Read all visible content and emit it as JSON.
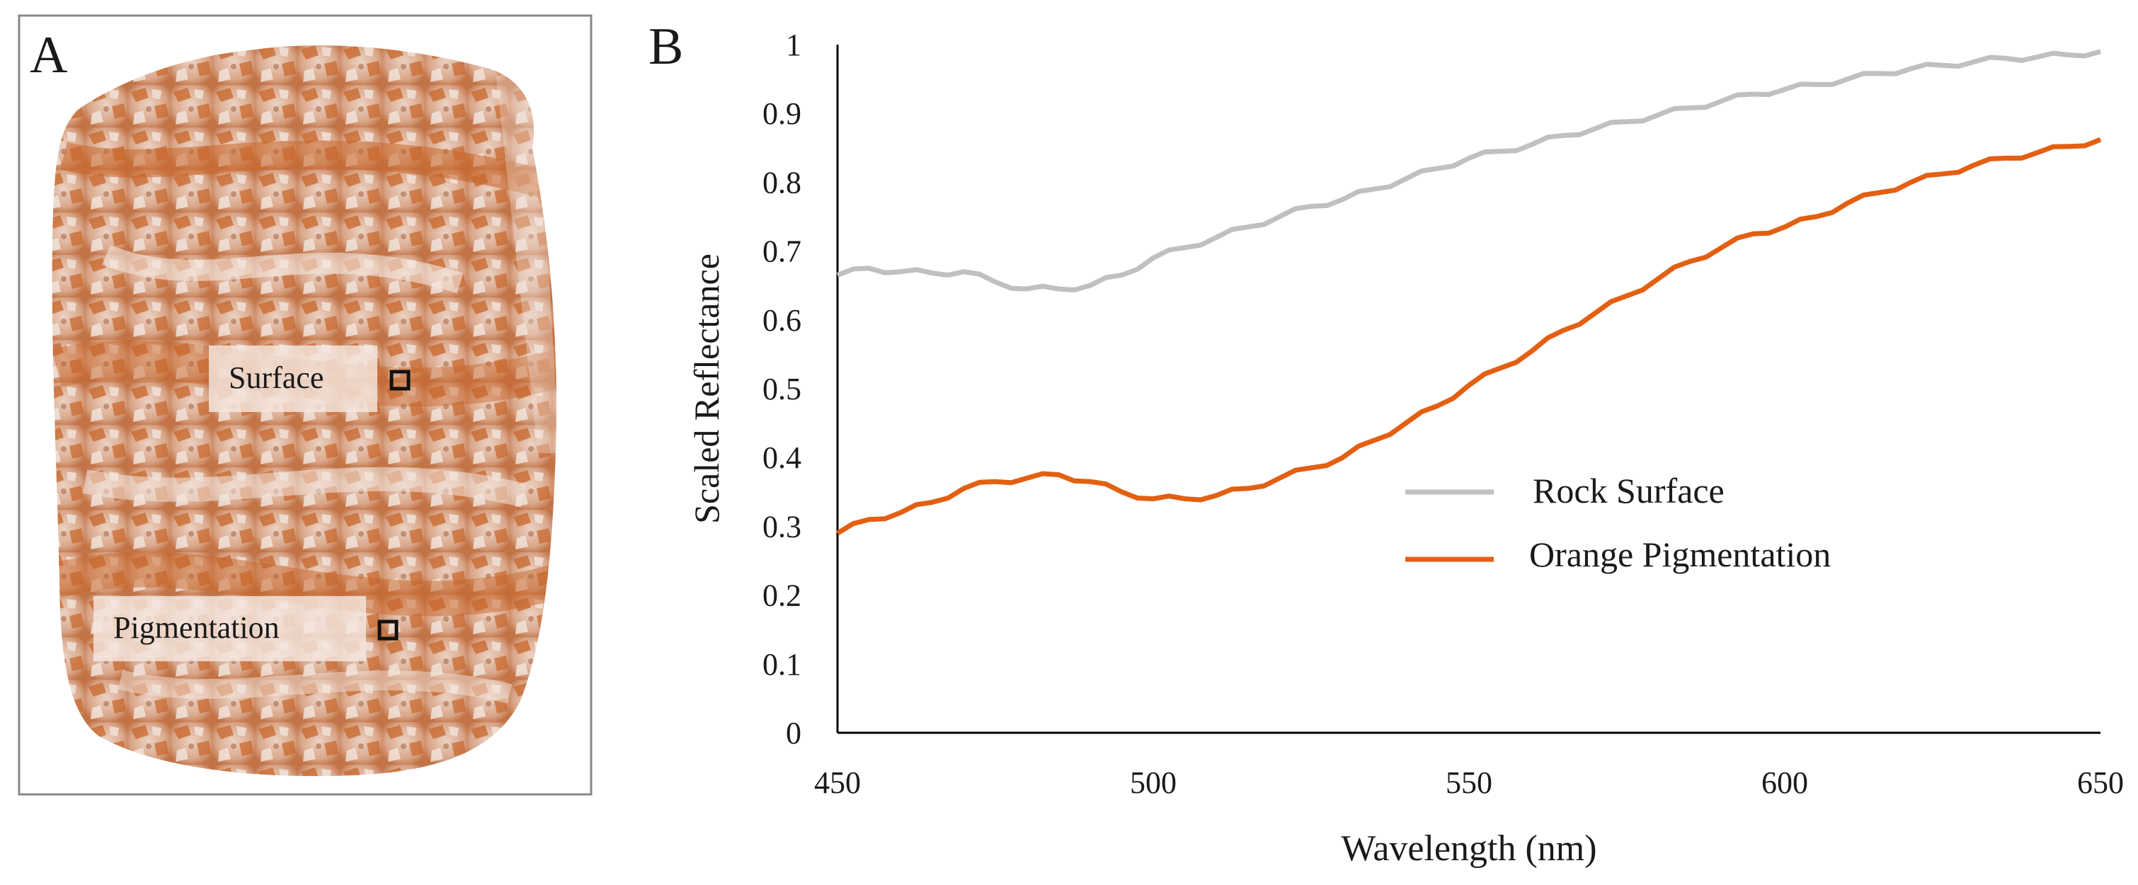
{
  "panel_a": {
    "label": "A",
    "surface_label": "Surface",
    "pigmentation_label": "Pigmentation",
    "rock_colors": {
      "base": "#e6c7b6",
      "stain": "#c8662a",
      "light": "#f3e6de",
      "shadow": "#9c5a35"
    }
  },
  "panel_b": {
    "label": "B"
  },
  "chart_data": {
    "type": "line",
    "title": "",
    "xlabel": "Wavelength (nm)",
    "ylabel": "Scaled Reflectance",
    "xlim": [
      450,
      650
    ],
    "ylim": [
      0,
      1
    ],
    "xticks": [
      "450",
      "500",
      "550",
      "600",
      "650"
    ],
    "xtick_values": [
      450,
      500,
      550,
      600,
      650
    ],
    "yticks": [
      "0",
      "0.1",
      "0.2",
      "0.3",
      "0.4",
      "0.5",
      "0.6",
      "0.7",
      "0.8",
      "0.9",
      "1"
    ],
    "ytick_values": [
      0,
      0.1,
      0.2,
      0.3,
      0.4,
      0.5,
      0.6,
      0.7,
      0.8,
      0.9,
      1
    ],
    "grid": false,
    "legend_position": "center-right",
    "series": [
      {
        "name": "Rock Surface",
        "color": "#c0c0c0",
        "x": [
          450,
          455,
          460,
          465,
          470,
          475,
          480,
          485,
          490,
          495,
          500,
          505,
          510,
          515,
          520,
          525,
          530,
          535,
          540,
          545,
          550,
          555,
          560,
          565,
          570,
          575,
          580,
          585,
          590,
          595,
          600,
          605,
          610,
          615,
          620,
          625,
          630,
          635,
          640,
          645,
          650
        ],
        "y": [
          0.665,
          0.675,
          0.67,
          0.668,
          0.67,
          0.655,
          0.645,
          0.645,
          0.65,
          0.665,
          0.69,
          0.705,
          0.72,
          0.735,
          0.75,
          0.765,
          0.775,
          0.79,
          0.805,
          0.82,
          0.835,
          0.845,
          0.855,
          0.868,
          0.878,
          0.888,
          0.898,
          0.908,
          0.918,
          0.928,
          0.935,
          0.942,
          0.95,
          0.958,
          0.965,
          0.97,
          0.975,
          0.98,
          0.982,
          0.985,
          0.99
        ]
      },
      {
        "name": "Orange Pigmentation",
        "color": "#e35f12",
        "x": [
          450,
          455,
          460,
          465,
          470,
          475,
          480,
          485,
          490,
          495,
          500,
          505,
          510,
          515,
          520,
          525,
          530,
          535,
          540,
          545,
          550,
          555,
          560,
          565,
          570,
          575,
          580,
          585,
          590,
          595,
          600,
          605,
          610,
          615,
          620,
          625,
          630,
          635,
          640,
          645,
          650
        ],
        "y": [
          0.29,
          0.31,
          0.32,
          0.335,
          0.355,
          0.365,
          0.37,
          0.375,
          0.365,
          0.35,
          0.34,
          0.34,
          0.345,
          0.355,
          0.37,
          0.385,
          0.4,
          0.425,
          0.45,
          0.475,
          0.505,
          0.53,
          0.555,
          0.585,
          0.61,
          0.635,
          0.66,
          0.685,
          0.705,
          0.725,
          0.735,
          0.75,
          0.77,
          0.785,
          0.8,
          0.812,
          0.825,
          0.835,
          0.843,
          0.852,
          0.862
        ]
      }
    ]
  }
}
